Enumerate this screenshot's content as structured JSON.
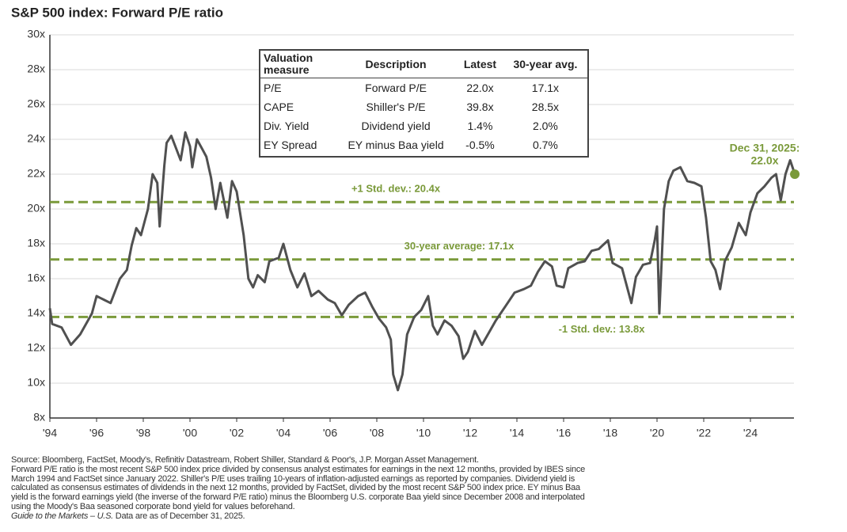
{
  "chart_data": {
    "type": "line",
    "title": "S&P 500 index: Forward P/E ratio",
    "line_color": "#505050",
    "ref_color": "#7a9a3a",
    "grid": true,
    "xlim": [
      1994,
      2026
    ],
    "ylim": [
      8,
      30
    ],
    "xticks": [
      {
        "value": 1994,
        "label": "'94"
      },
      {
        "value": 1996,
        "label": "'96"
      },
      {
        "value": 1998,
        "label": "'98"
      },
      {
        "value": 2000,
        "label": "'00"
      },
      {
        "value": 2002,
        "label": "'02"
      },
      {
        "value": 2004,
        "label": "'04"
      },
      {
        "value": 2006,
        "label": "'06"
      },
      {
        "value": 2008,
        "label": "'08"
      },
      {
        "value": 2010,
        "label": "'10"
      },
      {
        "value": 2012,
        "label": "'12"
      },
      {
        "value": 2014,
        "label": "'14"
      },
      {
        "value": 2016,
        "label": "'16"
      },
      {
        "value": 2018,
        "label": "'18"
      },
      {
        "value": 2020,
        "label": "'20"
      },
      {
        "value": 2022,
        "label": "'22"
      },
      {
        "value": 2024,
        "label": "'24"
      }
    ],
    "yticks": [
      {
        "value": 8,
        "label": "8x"
      },
      {
        "value": 10,
        "label": "10x"
      },
      {
        "value": 12,
        "label": "12x"
      },
      {
        "value": 14,
        "label": "14x"
      },
      {
        "value": 16,
        "label": "16x"
      },
      {
        "value": 18,
        "label": "18x"
      },
      {
        "value": 20,
        "label": "20x"
      },
      {
        "value": 22,
        "label": "22x"
      },
      {
        "value": 24,
        "label": "24x"
      },
      {
        "value": 26,
        "label": "26x"
      },
      {
        "value": 28,
        "label": "28x"
      },
      {
        "value": 30,
        "label": "30x"
      }
    ],
    "x": [
      1994.0,
      1994.1,
      1994.5,
      1994.9,
      1995.3,
      1995.8,
      1996.0,
      1996.3,
      1996.6,
      1997.0,
      1997.3,
      1997.5,
      1997.7,
      1997.9,
      1998.2,
      1998.4,
      1998.6,
      1998.7,
      1998.9,
      1999.0,
      1999.2,
      1999.4,
      1999.6,
      1999.8,
      2000.0,
      2000.1,
      2000.3,
      2000.5,
      2000.7,
      2000.9,
      2001.1,
      2001.3,
      2001.6,
      2001.8,
      2002.0,
      2002.3,
      2002.5,
      2002.7,
      2002.9,
      2003.2,
      2003.4,
      2003.8,
      2004.0,
      2004.3,
      2004.6,
      2004.9,
      2005.2,
      2005.5,
      2005.9,
      2006.2,
      2006.5,
      2006.8,
      2007.2,
      2007.5,
      2007.8,
      2008.1,
      2008.4,
      2008.6,
      2008.7,
      2008.9,
      2009.1,
      2009.3,
      2009.6,
      2009.9,
      2010.2,
      2010.4,
      2010.6,
      2010.9,
      2011.2,
      2011.5,
      2011.7,
      2011.9,
      2012.2,
      2012.5,
      2012.8,
      2013.1,
      2013.5,
      2013.9,
      2014.3,
      2014.6,
      2014.9,
      2015.2,
      2015.5,
      2015.7,
      2016.0,
      2016.2,
      2016.6,
      2016.9,
      2017.2,
      2017.5,
      2017.9,
      2018.1,
      2018.5,
      2018.9,
      2019.1,
      2019.4,
      2019.7,
      2019.9,
      2020.0,
      2020.1,
      2020.3,
      2020.5,
      2020.7,
      2021.0,
      2021.3,
      2021.6,
      2021.9,
      2022.1,
      2022.3,
      2022.5,
      2022.7,
      2022.9,
      2023.2,
      2023.5,
      2023.8,
      2024.0,
      2024.3,
      2024.6,
      2024.9,
      2025.1,
      2025.3,
      2025.5,
      2025.7,
      2025.9
    ],
    "values": [
      14.3,
      13.4,
      13.2,
      12.2,
      12.8,
      14.0,
      15.0,
      14.8,
      14.6,
      16.0,
      16.5,
      17.9,
      18.9,
      18.5,
      20.0,
      22.0,
      21.5,
      19.0,
      22.5,
      23.8,
      24.2,
      23.5,
      22.8,
      24.4,
      23.6,
      22.4,
      24.0,
      23.5,
      23.0,
      21.8,
      20.0,
      21.5,
      19.5,
      21.6,
      21.0,
      18.5,
      16.0,
      15.5,
      16.2,
      15.8,
      17.0,
      17.2,
      18.0,
      16.5,
      15.5,
      16.3,
      15.0,
      15.3,
      14.8,
      14.6,
      13.9,
      14.5,
      15.0,
      15.2,
      14.4,
      13.7,
      13.2,
      12.5,
      10.5,
      9.6,
      10.5,
      12.8,
      13.8,
      14.2,
      15.0,
      13.3,
      12.8,
      13.6,
      13.3,
      12.7,
      11.4,
      11.8,
      13.0,
      12.2,
      12.9,
      13.6,
      14.4,
      15.2,
      15.4,
      15.6,
      16.4,
      17.0,
      16.7,
      15.6,
      15.5,
      16.6,
      16.9,
      17.0,
      17.6,
      17.7,
      18.2,
      16.9,
      16.6,
      14.6,
      16.1,
      16.8,
      16.9,
      18.2,
      19.0,
      14.0,
      20.0,
      21.6,
      22.2,
      22.4,
      21.6,
      21.5,
      21.3,
      19.5,
      17.0,
      16.5,
      15.4,
      17.0,
      17.8,
      19.2,
      18.5,
      19.8,
      20.9,
      21.3,
      21.8,
      22.0,
      20.5,
      22.0,
      22.8,
      22.0
    ],
    "reference_lines": [
      {
        "value": 20.4,
        "label": "+1 Std. dev.: 20.4x"
      },
      {
        "value": 17.1,
        "label": "30-year average: 17.1x"
      },
      {
        "value": 13.8,
        "label": "-1 Std. dev.: 13.8x"
      }
    ],
    "annotation": [
      "Dec 31, 2025:",
      "22.0x"
    ],
    "table": {
      "header": [
        "Valuation measure",
        "Description",
        "Latest",
        "30-year avg."
      ],
      "rows": [
        [
          "P/E",
          "Forward P/E",
          "22.0x",
          "17.1x"
        ],
        [
          "CAPE",
          "Shiller's P/E",
          "39.8x",
          "28.5x"
        ],
        [
          "Div. Yield",
          "Dividend yield",
          "1.4%",
          "2.0%"
        ],
        [
          "EY Spread",
          "EY minus Baa yield",
          "-0.5%",
          "0.7%"
        ]
      ]
    },
    "footnotes": [
      "Source: Bloomberg, FactSet, Moody's, Refinitiv Datastream, Robert Shiller, Standard & Poor's, J.P. Morgan Asset Management.",
      "Forward P/E ratio is the most recent S&P 500 index price divided by consensus analyst estimates for earnings in the next 12 months, provided by IBES since",
      "March 1994 and FactSet since January 2022. Shiller's P/E uses trailing 10-years of inflation-adjusted earnings as reported by companies. Dividend yield is",
      "calculated as consensus estimates of dividends in the next 12 months, provided by FactSet, divided by the most recent S&P 500 index price. EY minus Baa",
      "yield is the forward earnings yield (the inverse of the forward P/E ratio) minus the Bloomberg U.S. corporate Baa yield since December 2008 and interpolated",
      "using the Moody's Baa seasoned corporate bond yield for values beforehand."
    ],
    "footer_italic": "Guide to the Markets – U.S.",
    "footer": "Data are as of December 31, 2025."
  }
}
